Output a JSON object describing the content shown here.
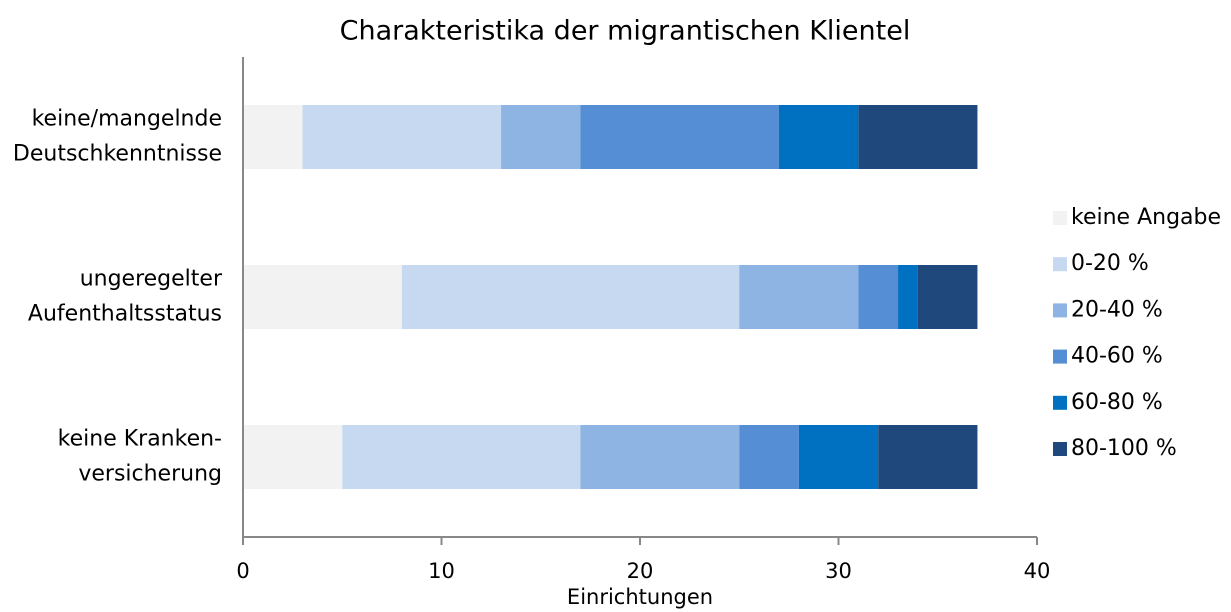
{
  "chart_data": {
    "type": "stacked_barh",
    "title": "Charakteristika der migrantischen Klientel",
    "x_label": "Einrichtungen",
    "categories": [
      [
        "keine/mangelnde",
        "Deutschkenntnisse"
      ],
      [
        "ungeregelter",
        "Aufenthaltsstatus"
      ],
      [
        "keine Kranken-",
        "versicherung"
      ]
    ],
    "series": [
      {
        "name": "keine Angabe",
        "color": "#f2f2f2",
        "values": [
          3,
          8,
          5
        ]
      },
      {
        "name": "0-20 %",
        "color": "#c6d9f1",
        "values": [
          10,
          17,
          12
        ]
      },
      {
        "name": "20-40 %",
        "color": "#8eb4e3",
        "values": [
          4,
          6,
          8
        ]
      },
      {
        "name": "40-60 %",
        "color": "#558ed5",
        "values": [
          10,
          2,
          3
        ]
      },
      {
        "name": "60-80 %",
        "color": "#0070c0",
        "values": [
          4,
          1,
          4
        ]
      },
      {
        "name": "80-100 %",
        "color": "#1f497d",
        "values": [
          6,
          3,
          5
        ]
      }
    ],
    "xlim": [
      0,
      40
    ],
    "xticks": [
      0,
      10,
      20,
      30,
      40
    ],
    "legend": "right"
  }
}
